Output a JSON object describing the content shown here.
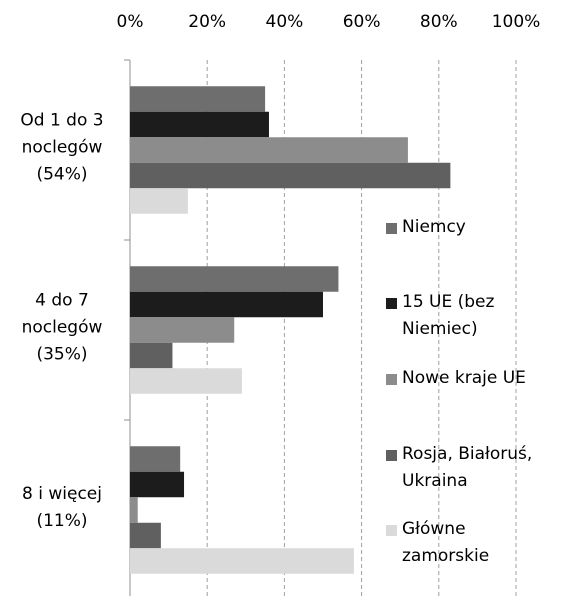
{
  "chart_data": {
    "type": "hbar",
    "categories": [
      "Od 1 do 3 noclegów (54%)",
      "4 do 7 noclegów (35%)",
      "8 i więcej (11%)"
    ],
    "series": [
      {
        "name": "Niemcy",
        "color": "#6e6e6e",
        "values": [
          35,
          54,
          13
        ]
      },
      {
        "name": "15 UE (bez Niemiec)",
        "color": "#1c1c1c",
        "values": [
          36,
          50,
          14
        ]
      },
      {
        "name": "Nowe kraje UE",
        "color": "#8c8c8c",
        "values": [
          72,
          27,
          2
        ]
      },
      {
        "name": "Rosja, Białoruś, Ukraina",
        "color": "#606060",
        "values": [
          83,
          11,
          8
        ]
      },
      {
        "name": "Główne zamorskie",
        "color": "#dadada",
        "values": [
          15,
          29,
          58
        ]
      }
    ],
    "xlim": [
      0,
      100
    ],
    "xticks": [
      {
        "value": 0,
        "label": "0%"
      },
      {
        "value": 20,
        "label": "20%"
      },
      {
        "value": 40,
        "label": "40%"
      },
      {
        "value": 60,
        "label": "60%"
      },
      {
        "value": 80,
        "label": "80%"
      },
      {
        "value": 100,
        "label": "100%"
      }
    ],
    "grid": true
  }
}
